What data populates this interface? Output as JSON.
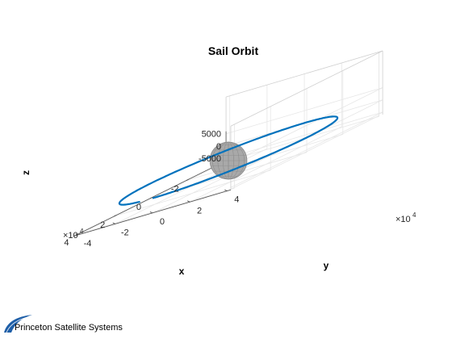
{
  "chart_data": {
    "type": "line",
    "title": "Sail Orbit",
    "xlabel": "x",
    "ylabel": "y",
    "zlabel": "z",
    "x_ticks": [
      "-2",
      "0",
      "2",
      "4"
    ],
    "x_multiplier": "×10^4",
    "y_ticks": [
      "-4",
      "-2",
      "0",
      "2",
      "4"
    ],
    "y_multiplier": "×10^4",
    "z_ticks": [
      "5000",
      "0",
      "-5000"
    ],
    "grid": true,
    "view": "3d",
    "series": [
      {
        "color": "#0072bd",
        "orbit_radius": 42000,
        "z": 0,
        "arc_start_deg": 0,
        "arc_end_deg": 350
      }
    ],
    "body": {
      "shape": "sphere",
      "radius": 6378,
      "center": [
        0,
        0,
        0
      ],
      "color": "#a6a6a6"
    }
  },
  "logo": {
    "text": "Princeton Satellite Systems",
    "color": "#1f5fa8"
  }
}
